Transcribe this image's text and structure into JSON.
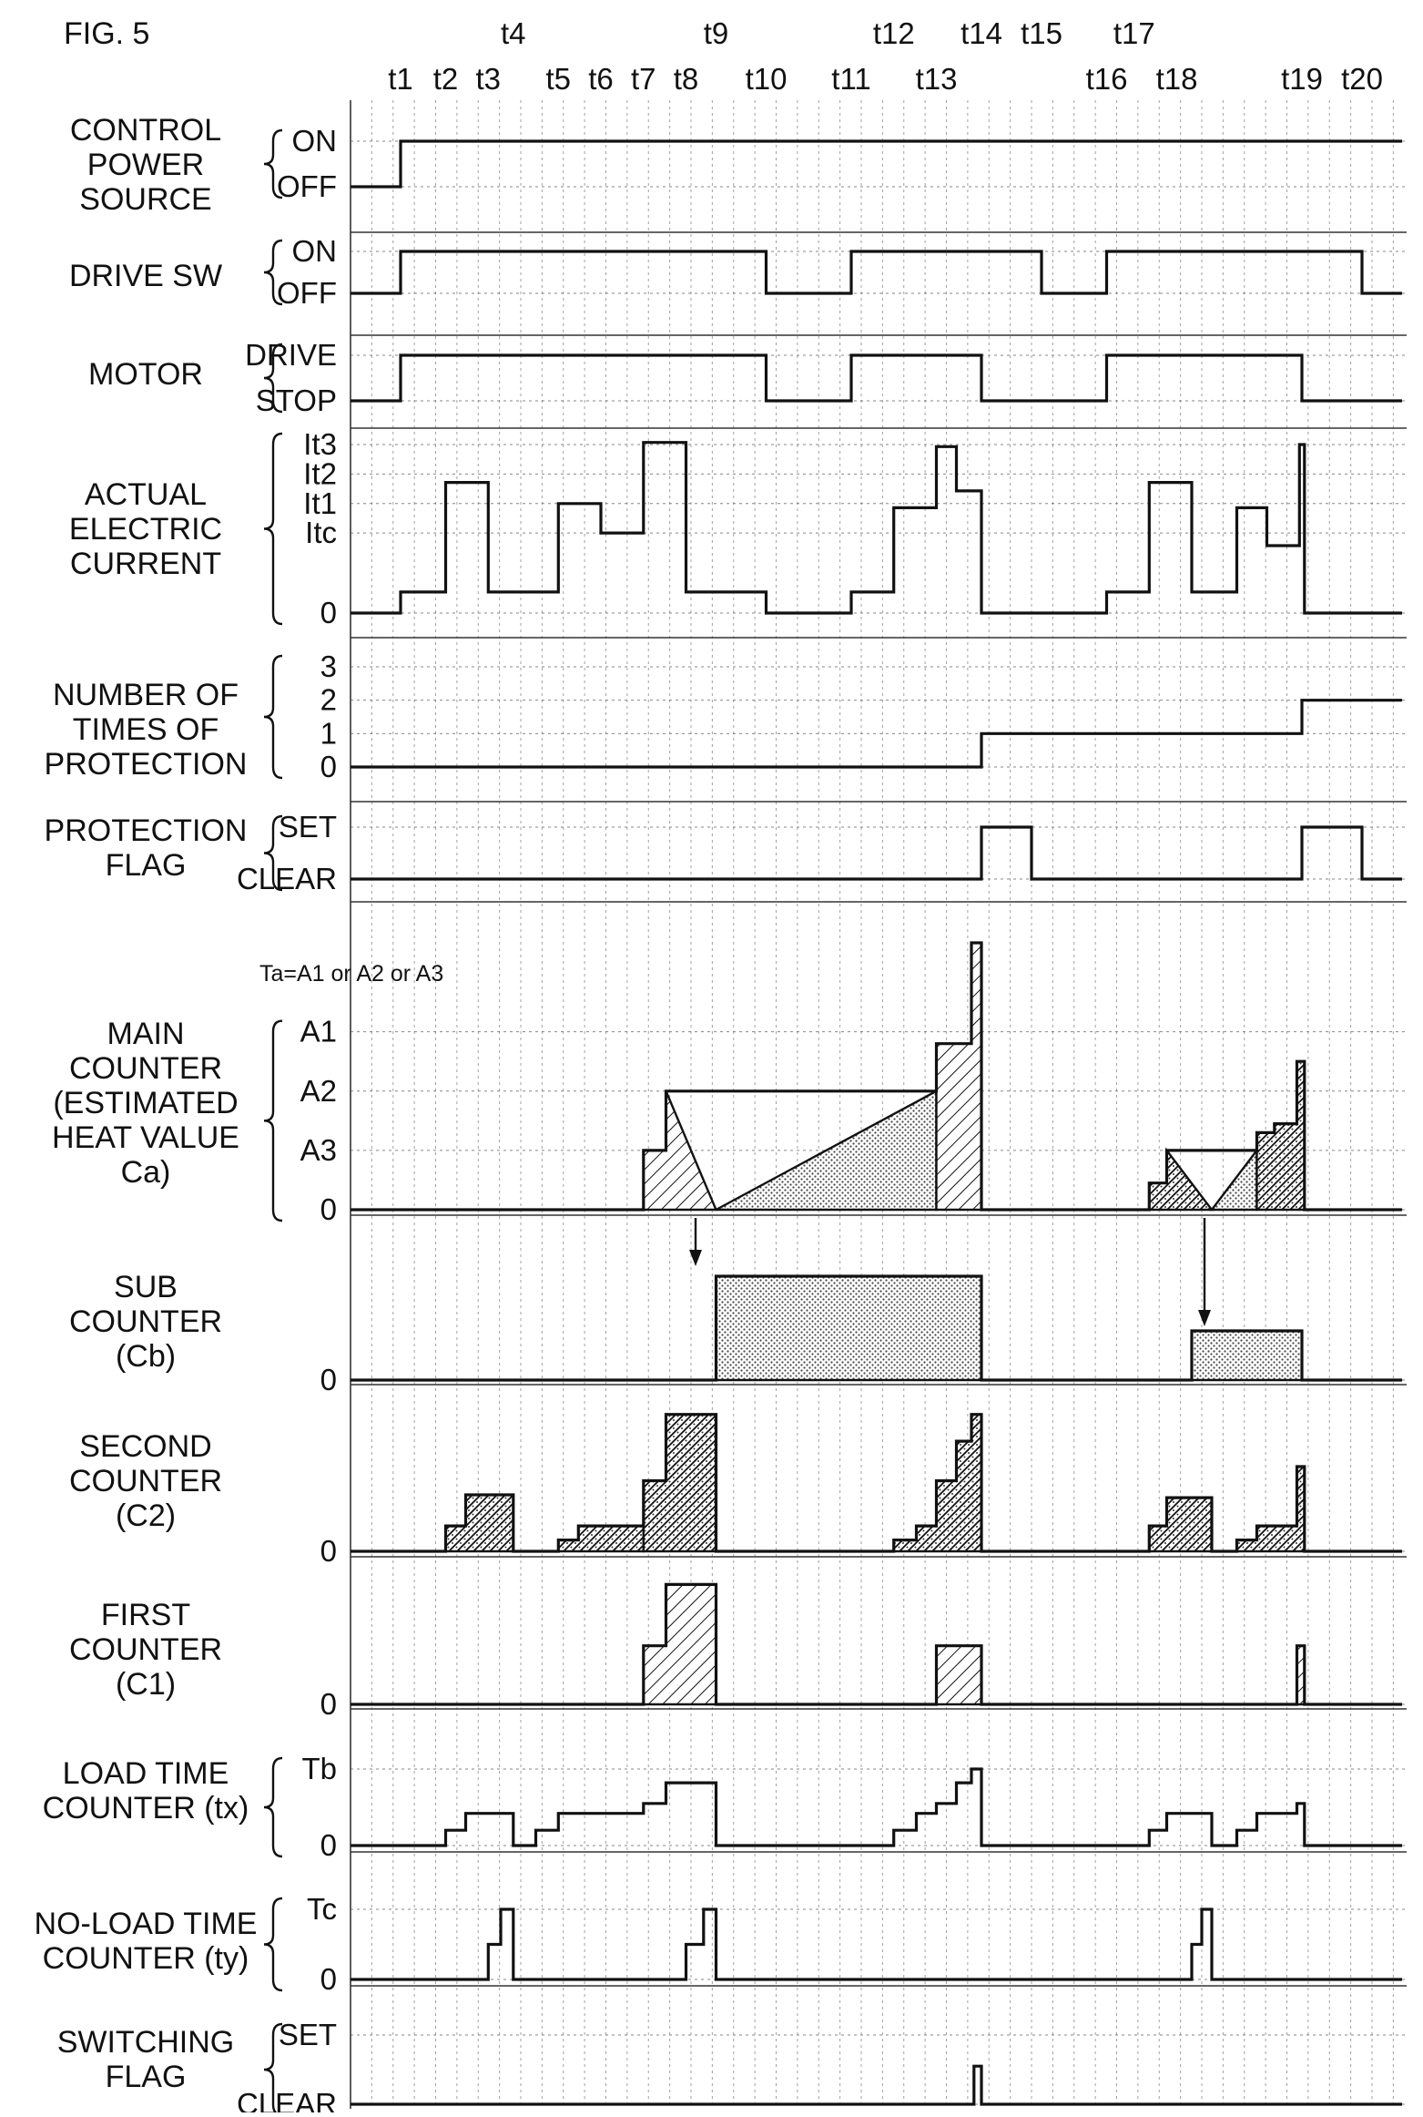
{
  "figure": {
    "label": "FIG. 5",
    "note": "Ta=A1 or A2 or A3"
  },
  "time_labels": [
    {
      "name": "t1",
      "x": 1.0
    },
    {
      "name": "t2",
      "x": 1.9
    },
    {
      "name": "t3",
      "x": 2.75
    },
    {
      "name": "t4",
      "x": 3.25
    },
    {
      "name": "t5",
      "x": 4.15
    },
    {
      "name": "t6",
      "x": 5.0
    },
    {
      "name": "t7",
      "x": 5.85
    },
    {
      "name": "t8",
      "x": 6.7
    },
    {
      "name": "t9",
      "x": 7.3
    },
    {
      "name": "t10",
      "x": 8.3
    },
    {
      "name": "t11",
      "x": 10.0
    },
    {
      "name": "t12",
      "x": 10.85
    },
    {
      "name": "t13",
      "x": 11.7
    },
    {
      "name": "t14",
      "x": 12.6
    },
    {
      "name": "t15",
      "x": 13.8
    },
    {
      "name": "t16",
      "x": 15.1
    },
    {
      "name": "t17",
      "x": 15.65
    },
    {
      "name": "t18",
      "x": 16.5
    },
    {
      "name": "t19",
      "x": 19.0
    },
    {
      "name": "t20",
      "x": 20.2
    }
  ],
  "axis_range": [
    0,
    21
  ],
  "rows": [
    {
      "id": "control-power-source",
      "label_lines": [
        "CONTROL",
        "POWER",
        "SOURCE"
      ],
      "levels": [
        "OFF",
        "ON"
      ],
      "level_values": [
        0,
        1
      ],
      "y_max": 1,
      "waveform": [
        [
          0,
          0
        ],
        [
          1,
          0
        ],
        [
          1,
          1
        ],
        [
          21,
          1
        ]
      ]
    },
    {
      "id": "drive-sw",
      "label_lines": [
        "DRIVE SW"
      ],
      "levels": [
        "OFF",
        "ON"
      ],
      "level_values": [
        0,
        1
      ],
      "y_max": 1,
      "waveform": [
        [
          0,
          0
        ],
        [
          1,
          0
        ],
        [
          1,
          1
        ],
        [
          8.3,
          1
        ],
        [
          8.3,
          0
        ],
        [
          10,
          0
        ],
        [
          10,
          1
        ],
        [
          13.8,
          1
        ],
        [
          13.8,
          0
        ],
        [
          15.1,
          0
        ],
        [
          15.1,
          1
        ],
        [
          20.2,
          1
        ],
        [
          20.2,
          0
        ],
        [
          21,
          0
        ]
      ]
    },
    {
      "id": "motor",
      "label_lines": [
        "MOTOR"
      ],
      "levels": [
        "STOP",
        "DRIVE"
      ],
      "level_values": [
        0,
        1
      ],
      "y_max": 1,
      "waveform": [
        [
          0,
          0
        ],
        [
          1,
          0
        ],
        [
          1,
          1
        ],
        [
          8.3,
          1
        ],
        [
          8.3,
          0
        ],
        [
          10,
          0
        ],
        [
          10,
          1
        ],
        [
          12.6,
          1
        ],
        [
          12.6,
          0
        ],
        [
          15.1,
          0
        ],
        [
          15.1,
          1
        ],
        [
          19,
          1
        ],
        [
          19,
          0
        ],
        [
          21,
          0
        ]
      ]
    },
    {
      "id": "actual-electric-current",
      "label_lines": [
        "ACTUAL",
        "ELECTRIC",
        "CURRENT"
      ],
      "levels": [
        "0",
        "Itc",
        "It1",
        "It2",
        "It3"
      ],
      "level_values": [
        0,
        1.9,
        2.6,
        3.3,
        4.0
      ],
      "y_max": 4.0,
      "waveform": [
        [
          0,
          0
        ],
        [
          1,
          0
        ],
        [
          1,
          0.5
        ],
        [
          1.9,
          0.5
        ],
        [
          1.9,
          3.1
        ],
        [
          2.75,
          3.1
        ],
        [
          2.75,
          0.5
        ],
        [
          4.15,
          0.5
        ],
        [
          4.15,
          2.6
        ],
        [
          5.0,
          2.6
        ],
        [
          5.0,
          1.9
        ],
        [
          5.85,
          1.9
        ],
        [
          5.85,
          4.05
        ],
        [
          6.7,
          4.05
        ],
        [
          6.7,
          0.5
        ],
        [
          8.3,
          0.5
        ],
        [
          8.3,
          0
        ],
        [
          10,
          0
        ],
        [
          10,
          0.5
        ],
        [
          10.85,
          0.5
        ],
        [
          10.85,
          2.5
        ],
        [
          11.7,
          2.5
        ],
        [
          11.7,
          3.95
        ],
        [
          12.1,
          3.95
        ],
        [
          12.1,
          2.9
        ],
        [
          12.6,
          2.9
        ],
        [
          12.6,
          0
        ],
        [
          15.1,
          0
        ],
        [
          15.1,
          0.5
        ],
        [
          15.95,
          0.5
        ],
        [
          15.95,
          3.1
        ],
        [
          16.8,
          3.1
        ],
        [
          16.8,
          0.5
        ],
        [
          17.7,
          0.5
        ],
        [
          17.7,
          2.5
        ],
        [
          18.3,
          2.5
        ],
        [
          18.3,
          1.6
        ],
        [
          18.95,
          1.6
        ],
        [
          18.95,
          4.0
        ],
        [
          19.05,
          4.0
        ],
        [
          19.05,
          0
        ],
        [
          21,
          0
        ]
      ]
    },
    {
      "id": "number-of-times-of-protection",
      "label_lines": [
        "NUMBER OF",
        "TIMES OF",
        "PROTECTION"
      ],
      "levels": [
        "0",
        "1",
        "2",
        "3"
      ],
      "level_values": [
        0,
        1,
        2,
        3
      ],
      "y_max": 3,
      "waveform": [
        [
          0,
          0
        ],
        [
          12.6,
          0
        ],
        [
          12.6,
          1
        ],
        [
          19,
          1
        ],
        [
          19,
          2
        ],
        [
          21,
          2
        ]
      ]
    },
    {
      "id": "protection-flag",
      "label_lines": [
        "PROTECTION",
        "FLAG"
      ],
      "levels": [
        "CLEAR",
        "SET"
      ],
      "level_values": [
        0,
        1
      ],
      "y_max": 1,
      "waveform": [
        [
          0,
          0
        ],
        [
          12.6,
          0
        ],
        [
          12.6,
          1
        ],
        [
          13.6,
          1
        ],
        [
          13.6,
          0
        ],
        [
          19,
          0
        ],
        [
          19,
          1
        ],
        [
          20.2,
          1
        ],
        [
          20.2,
          0
        ],
        [
          21,
          0
        ]
      ]
    },
    {
      "id": "main-counter",
      "label_lines": [
        "MAIN",
        "COUNTER",
        "(ESTIMATED",
        "HEAT VALUE",
        "Ca)"
      ],
      "levels": [
        "0",
        "A3",
        "A2",
        "A1"
      ],
      "level_values": [
        0,
        1,
        2,
        3
      ],
      "y_max": 4.5,
      "waveform": [
        [
          0,
          0
        ],
        [
          5.85,
          0
        ],
        [
          5.85,
          1
        ],
        [
          6.3,
          1
        ],
        [
          6.3,
          2
        ],
        [
          11.7,
          2
        ],
        [
          11.7,
          2.8
        ],
        [
          12.4,
          2.8
        ],
        [
          12.4,
          4.5
        ],
        [
          12.6,
          4.5
        ],
        [
          12.6,
          0
        ],
        [
          15.95,
          0
        ],
        [
          15.95,
          0.45
        ],
        [
          16.3,
          0.45
        ],
        [
          16.3,
          1
        ],
        [
          18.1,
          1
        ],
        [
          18.1,
          1.3
        ],
        [
          18.45,
          1.3
        ],
        [
          18.45,
          1.45
        ],
        [
          18.9,
          1.45
        ],
        [
          18.9,
          2.5
        ],
        [
          19.05,
          2.5
        ],
        [
          19.05,
          0
        ],
        [
          21,
          0
        ]
      ]
    },
    {
      "id": "sub-counter",
      "label_lines": [
        "SUB",
        "COUNTER",
        "(Cb)"
      ],
      "levels": [
        "0"
      ],
      "level_values": [
        0
      ],
      "y_max": 1,
      "waveform": [
        [
          0,
          0
        ],
        [
          7.3,
          0
        ],
        [
          7.3,
          0.95
        ],
        [
          12.6,
          0.95
        ],
        [
          12.6,
          0
        ],
        [
          16.8,
          0
        ],
        [
          16.8,
          0.45
        ],
        [
          19,
          0.45
        ],
        [
          19,
          0
        ],
        [
          21,
          0
        ]
      ]
    },
    {
      "id": "second-counter",
      "label_lines": [
        "SECOND",
        "COUNTER",
        "(C2)"
      ],
      "levels": [
        "0"
      ],
      "level_values": [
        0
      ],
      "y_max": 1,
      "waveform": [
        [
          0,
          0
        ],
        [
          1.9,
          0
        ],
        [
          1.9,
          0.18
        ],
        [
          2.3,
          0.18
        ],
        [
          2.3,
          0.4
        ],
        [
          3.25,
          0.4
        ],
        [
          3.25,
          0
        ],
        [
          4.15,
          0
        ],
        [
          4.15,
          0.08
        ],
        [
          4.55,
          0.08
        ],
        [
          4.55,
          0.18
        ],
        [
          5.85,
          0.18
        ],
        [
          5.85,
          0.5
        ],
        [
          6.3,
          0.5
        ],
        [
          6.3,
          0.97
        ],
        [
          7.3,
          0.97
        ],
        [
          7.3,
          0
        ],
        [
          10.85,
          0
        ],
        [
          10.85,
          0.08
        ],
        [
          11.3,
          0.08
        ],
        [
          11.3,
          0.18
        ],
        [
          11.7,
          0.18
        ],
        [
          11.7,
          0.5
        ],
        [
          12.1,
          0.5
        ],
        [
          12.1,
          0.78
        ],
        [
          12.4,
          0.78
        ],
        [
          12.4,
          0.97
        ],
        [
          12.6,
          0.97
        ],
        [
          12.6,
          0
        ],
        [
          15.95,
          0
        ],
        [
          15.95,
          0.18
        ],
        [
          16.3,
          0.18
        ],
        [
          16.3,
          0.38
        ],
        [
          17.2,
          0.38
        ],
        [
          17.2,
          0
        ],
        [
          17.7,
          0
        ],
        [
          17.7,
          0.08
        ],
        [
          18.1,
          0.08
        ],
        [
          18.1,
          0.18
        ],
        [
          18.9,
          0.18
        ],
        [
          18.9,
          0.6
        ],
        [
          19.05,
          0.6
        ],
        [
          19.05,
          0
        ],
        [
          21,
          0
        ]
      ]
    },
    {
      "id": "first-counter",
      "label_lines": [
        "FIRST",
        "COUNTER",
        "(C1)"
      ],
      "levels": [
        "0"
      ],
      "level_values": [
        0
      ],
      "y_max": 1,
      "waveform": [
        [
          0,
          0
        ],
        [
          5.85,
          0
        ],
        [
          5.85,
          0.45
        ],
        [
          6.3,
          0.45
        ],
        [
          6.3,
          0.92
        ],
        [
          7.3,
          0.92
        ],
        [
          7.3,
          0
        ],
        [
          11.7,
          0
        ],
        [
          11.7,
          0.45
        ],
        [
          12.6,
          0.45
        ],
        [
          12.6,
          0
        ],
        [
          18.9,
          0
        ],
        [
          18.9,
          0.45
        ],
        [
          19.05,
          0.45
        ],
        [
          19.05,
          0
        ],
        [
          21,
          0
        ]
      ]
    },
    {
      "id": "load-time-counter",
      "label_lines": [
        "LOAD TIME",
        "COUNTER (tx)"
      ],
      "levels": [
        "0",
        "Tb"
      ],
      "level_values": [
        0,
        1
      ],
      "y_max": 1,
      "waveform": [
        [
          0,
          0
        ],
        [
          1.9,
          0
        ],
        [
          1.9,
          0.2
        ],
        [
          2.3,
          0.2
        ],
        [
          2.3,
          0.42
        ],
        [
          3.25,
          0.42
        ],
        [
          3.25,
          0
        ],
        [
          3.7,
          0
        ],
        [
          3.7,
          0.2
        ],
        [
          4.15,
          0.2
        ],
        [
          4.15,
          0.42
        ],
        [
          5.85,
          0.42
        ],
        [
          5.85,
          0.55
        ],
        [
          6.3,
          0.55
        ],
        [
          6.3,
          0.82
        ],
        [
          7.3,
          0.82
        ],
        [
          7.3,
          0
        ],
        [
          10.85,
          0
        ],
        [
          10.85,
          0.2
        ],
        [
          11.3,
          0.2
        ],
        [
          11.3,
          0.42
        ],
        [
          11.7,
          0.42
        ],
        [
          11.7,
          0.55
        ],
        [
          12.1,
          0.55
        ],
        [
          12.1,
          0.82
        ],
        [
          12.4,
          0.82
        ],
        [
          12.4,
          1.0
        ],
        [
          12.6,
          1.0
        ],
        [
          12.6,
          0
        ],
        [
          15.95,
          0
        ],
        [
          15.95,
          0.2
        ],
        [
          16.3,
          0.2
        ],
        [
          16.3,
          0.42
        ],
        [
          17.2,
          0.42
        ],
        [
          17.2,
          0
        ],
        [
          17.7,
          0
        ],
        [
          17.7,
          0.2
        ],
        [
          18.1,
          0.2
        ],
        [
          18.1,
          0.42
        ],
        [
          18.9,
          0.42
        ],
        [
          18.9,
          0.55
        ],
        [
          19.05,
          0.55
        ],
        [
          19.05,
          0
        ],
        [
          21,
          0
        ]
      ]
    },
    {
      "id": "no-load-time-counter",
      "label_lines": [
        "NO-LOAD TIME",
        "COUNTER (ty)"
      ],
      "levels": [
        "0",
        "Tc"
      ],
      "level_values": [
        0,
        1
      ],
      "y_max": 1,
      "waveform": [
        [
          0,
          0
        ],
        [
          2.75,
          0
        ],
        [
          2.75,
          0.5
        ],
        [
          3.0,
          0.5
        ],
        [
          3.0,
          1.0
        ],
        [
          3.25,
          1.0
        ],
        [
          3.25,
          0
        ],
        [
          6.7,
          0
        ],
        [
          6.7,
          0.5
        ],
        [
          7.05,
          0.5
        ],
        [
          7.05,
          1.0
        ],
        [
          7.3,
          1.0
        ],
        [
          7.3,
          0
        ],
        [
          16.8,
          0
        ],
        [
          16.8,
          0.5
        ],
        [
          17.0,
          0.5
        ],
        [
          17.0,
          1.0
        ],
        [
          17.2,
          1.0
        ],
        [
          17.2,
          0
        ],
        [
          21,
          0
        ]
      ]
    },
    {
      "id": "switching-flag",
      "label_lines": [
        "SWITCHING",
        "FLAG"
      ],
      "levels": [
        "CLEAR",
        "SET"
      ],
      "level_values": [
        0,
        1
      ],
      "y_max": 1,
      "waveform": [
        [
          0,
          0
        ],
        [
          12.45,
          0
        ],
        [
          12.45,
          0.55
        ],
        [
          12.6,
          0.55
        ],
        [
          12.6,
          0
        ],
        [
          21,
          0
        ]
      ]
    }
  ]
}
